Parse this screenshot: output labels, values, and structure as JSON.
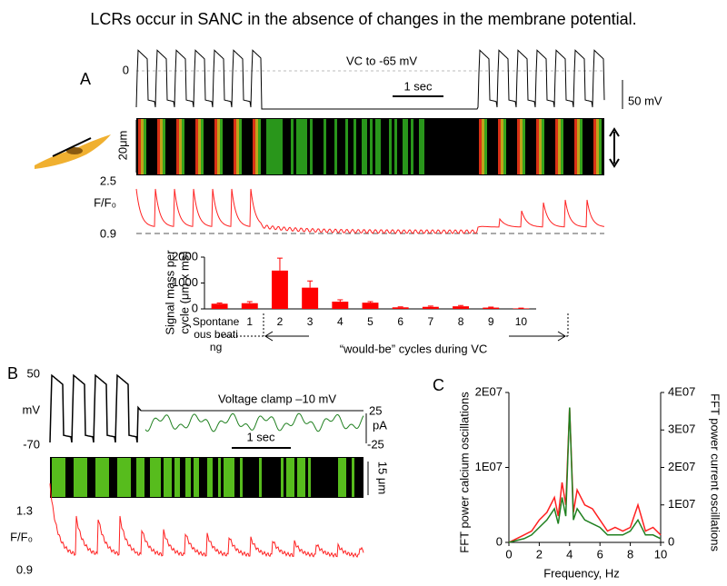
{
  "title": "LCRs occur in SANC in the absence of changes in the membrane potential.",
  "panel_a": {
    "label": "A",
    "zero_label": "0",
    "vc_label": "VC to -65 mV",
    "time_scale": "1 sec",
    "voltage_scale": "50 mV",
    "space_scale": "20μm",
    "ratio_label": "F/F₀",
    "ratio_top": "2.5",
    "ratio_bottom": "0.9"
  },
  "panel_b": {
    "label": "B",
    "v_top": "50",
    "v_unit": "mV",
    "v_bottom": "-70",
    "clamp_label": "Voltage clamp –10 mV",
    "i_top": "25",
    "i_unit": "pA",
    "i_bottom": "-25",
    "time_scale": "1 sec",
    "space_scale": "15 μm",
    "ratio_label": "F/F₀",
    "ratio_top": "1.3",
    "ratio_bottom": "0.9"
  },
  "panel_c": {
    "label": "C"
  },
  "chart_data": [
    {
      "type": "bar",
      "ylabel": [
        "Signal mass per",
        "cycle (μm x ms)"
      ],
      "xlabel": "“would-be” cycles during VC",
      "categories": [
        "Spontaneous beating",
        "1",
        "2",
        "3",
        "4",
        "5",
        "6",
        "7",
        "8",
        "9",
        "10"
      ],
      "values": [
        200,
        220,
        1480,
        820,
        280,
        240,
        60,
        80,
        100,
        50,
        20
      ],
      "errors": [
        30,
        60,
        480,
        260,
        70,
        40,
        20,
        30,
        30,
        20,
        10
      ],
      "color": "#ff0000",
      "ylim": [
        0,
        2000
      ],
      "yticks": [
        0,
        1000,
        2000
      ]
    },
    {
      "type": "line",
      "xlabel": "Frequency,  Hz",
      "ylabel": "FFT  power calcium oscillations",
      "y2label": "FFT  power current oscillations",
      "x": [
        0,
        0.5,
        1,
        1.5,
        2,
        2.5,
        3,
        3.25,
        3.5,
        3.75,
        4,
        4.25,
        4.5,
        5,
        5.5,
        6,
        6.5,
        7,
        7.5,
        8,
        8.5,
        9,
        9.5,
        10
      ],
      "xlim": [
        0,
        10
      ],
      "xticks": [
        0,
        2,
        4,
        6,
        8,
        10
      ],
      "ylim": [
        0,
        20000000
      ],
      "yticks": [
        0,
        {
          "value": 10000000,
          "label": "1E07"
        },
        {
          "value": 20000000,
          "label": "2E07"
        }
      ],
      "y2lim": [
        0,
        40000000
      ],
      "y2ticks": [
        0,
        {
          "value": 10000000,
          "label": "1E07"
        },
        {
          "value": 20000000,
          "label": "2E07"
        },
        {
          "value": 30000000,
          "label": "3E07"
        },
        {
          "value": 40000000,
          "label": "4E07"
        }
      ],
      "series": [
        {
          "color": "#ff2020",
          "values": [
            0,
            500000,
            1000000,
            1500000,
            3000000,
            4000000,
            6000000,
            3500000,
            8000000,
            5000000,
            18000000,
            4000000,
            7000000,
            5000000,
            4500000,
            3000000,
            1500000,
            2000000,
            1500000,
            2000000,
            5000000,
            1500000,
            2000000,
            1000000
          ]
        },
        {
          "color": "#208020",
          "axis": "y2",
          "values": [
            0,
            500000,
            1000000,
            2000000,
            4000000,
            6000000,
            9000000,
            5000000,
            12000000,
            7000000,
            36000000,
            6000000,
            9000000,
            6000000,
            5000000,
            4000000,
            2000000,
            2000000,
            2000000,
            3000000,
            6000000,
            2000000,
            2000000,
            1000000
          ]
        }
      ]
    }
  ]
}
